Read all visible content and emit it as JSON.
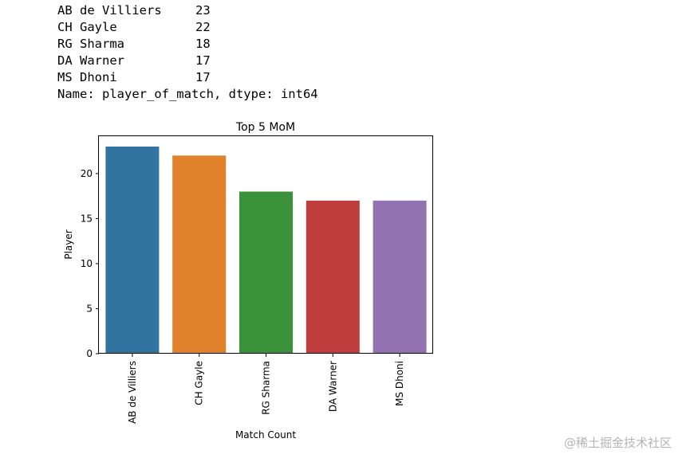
{
  "output": {
    "rows": [
      {
        "name": "AB de Villiers",
        "count": "23"
      },
      {
        "name": "CH Gayle",
        "count": "22"
      },
      {
        "name": "RG Sharma",
        "count": "18"
      },
      {
        "name": "DA Warner",
        "count": "17"
      },
      {
        "name": "MS Dhoni",
        "count": "17"
      }
    ],
    "footer": "Name: player_of_match, dtype: int64"
  },
  "chart_data": {
    "type": "bar",
    "title": "Top 5 MoM",
    "xlabel": "Match Count",
    "ylabel": "Player",
    "categories": [
      "AB de Villiers",
      "CH Gayle",
      "RG Sharma",
      "DA Warner",
      "MS Dhoni"
    ],
    "values": [
      23,
      22,
      18,
      17,
      17
    ],
    "colors": [
      "#3274a1",
      "#e1812c",
      "#3a923a",
      "#c03d3e",
      "#9372b2"
    ],
    "yticks": [
      0,
      5,
      10,
      15,
      20
    ],
    "ylim": [
      0,
      24.15
    ],
    "grid": false,
    "x_tick_rotation": "vertical"
  },
  "watermark": "@稀土掘金技术社区"
}
